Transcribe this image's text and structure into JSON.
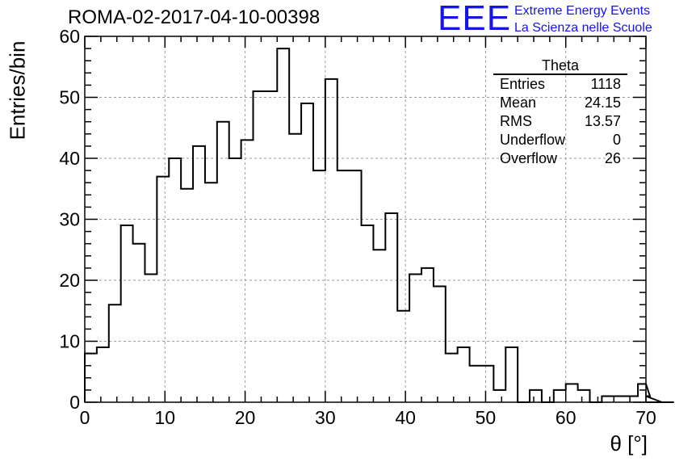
{
  "page": {
    "title": "ROMA-02-2017-04-10-00398"
  },
  "logo": {
    "letters": "EEE",
    "line1": "Extreme Energy Events",
    "line2": "La Scienza nelle Scuole",
    "color": "#1515e6"
  },
  "stats_box": {
    "name": "Theta",
    "rows": [
      {
        "label": "Entries",
        "value": "1118"
      },
      {
        "label": "Mean",
        "value": "24.15"
      },
      {
        "label": "RMS",
        "value": "13.57"
      },
      {
        "label": "Underflow",
        "value": "0"
      },
      {
        "label": "Overflow",
        "value": "26"
      }
    ]
  },
  "chart_data": {
    "type": "bar",
    "style": "step-histogram",
    "bin_width": 1.5,
    "x_start": 0,
    "values": [
      8,
      9,
      16,
      29,
      26,
      21,
      37,
      40,
      35,
      42,
      36,
      46,
      40,
      43,
      51,
      51,
      58,
      44,
      49,
      38,
      53,
      38,
      38,
      29,
      25,
      31,
      15,
      21,
      22,
      19,
      8,
      9,
      6,
      6,
      2,
      9,
      0,
      2,
      0,
      2,
      3,
      2,
      0,
      1,
      1,
      1,
      3,
      1,
      0,
      0
    ],
    "xlabel": "θ [°]",
    "ylabel": "Entries/bin",
    "xlim": [
      0,
      70
    ],
    "ylim": [
      0,
      60
    ],
    "xticks": [
      0,
      10,
      20,
      30,
      40,
      50,
      60,
      70
    ],
    "yticks": [
      0,
      10,
      20,
      30,
      40,
      50,
      60
    ],
    "grid": true,
    "line_color": "#000000"
  }
}
